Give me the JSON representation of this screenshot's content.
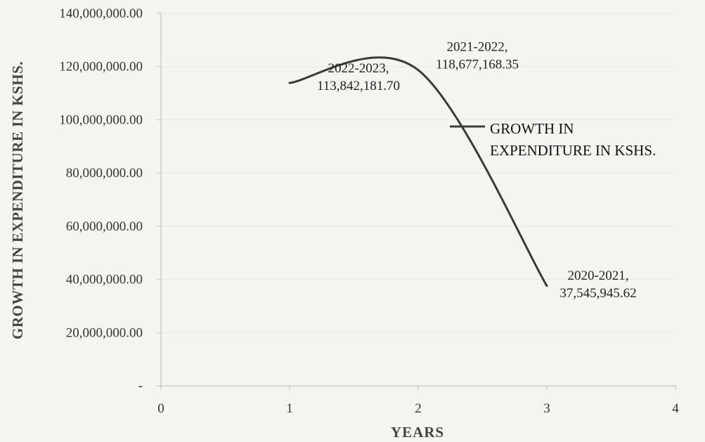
{
  "chart_data": {
    "type": "line",
    "title": "",
    "xlabel": "YEARS",
    "ylabel": "GROWTH IN EXPENDITURE IN KSHS.",
    "xlim": [
      0,
      4
    ],
    "ylim": [
      0,
      140000000
    ],
    "x_ticks": [
      "0",
      "1",
      "2",
      "3",
      "4"
    ],
    "y_ticks": [
      "-",
      "20,000,000.00",
      "40,000,000.00",
      "60,000,000.00",
      "80,000,000.00",
      "100,000,000.00",
      "120,000,000.00",
      "140,000,000.00"
    ],
    "smooth": true,
    "grid": true,
    "legend_position": "right",
    "color": "#3a3a3a",
    "series": [
      {
        "name": "GROWTH IN EXPENDITURE IN KSHS.",
        "x": [
          1,
          2,
          3
        ],
        "y": [
          113842181.7,
          118677168.35,
          37545945.62
        ],
        "data_labels": [
          [
            "2022-2023,",
            "113,842,181.70"
          ],
          [
            "2021-2022,",
            "118,677,168.35"
          ],
          [
            "2020-2021,",
            "37,545,945.62"
          ]
        ]
      }
    ]
  }
}
